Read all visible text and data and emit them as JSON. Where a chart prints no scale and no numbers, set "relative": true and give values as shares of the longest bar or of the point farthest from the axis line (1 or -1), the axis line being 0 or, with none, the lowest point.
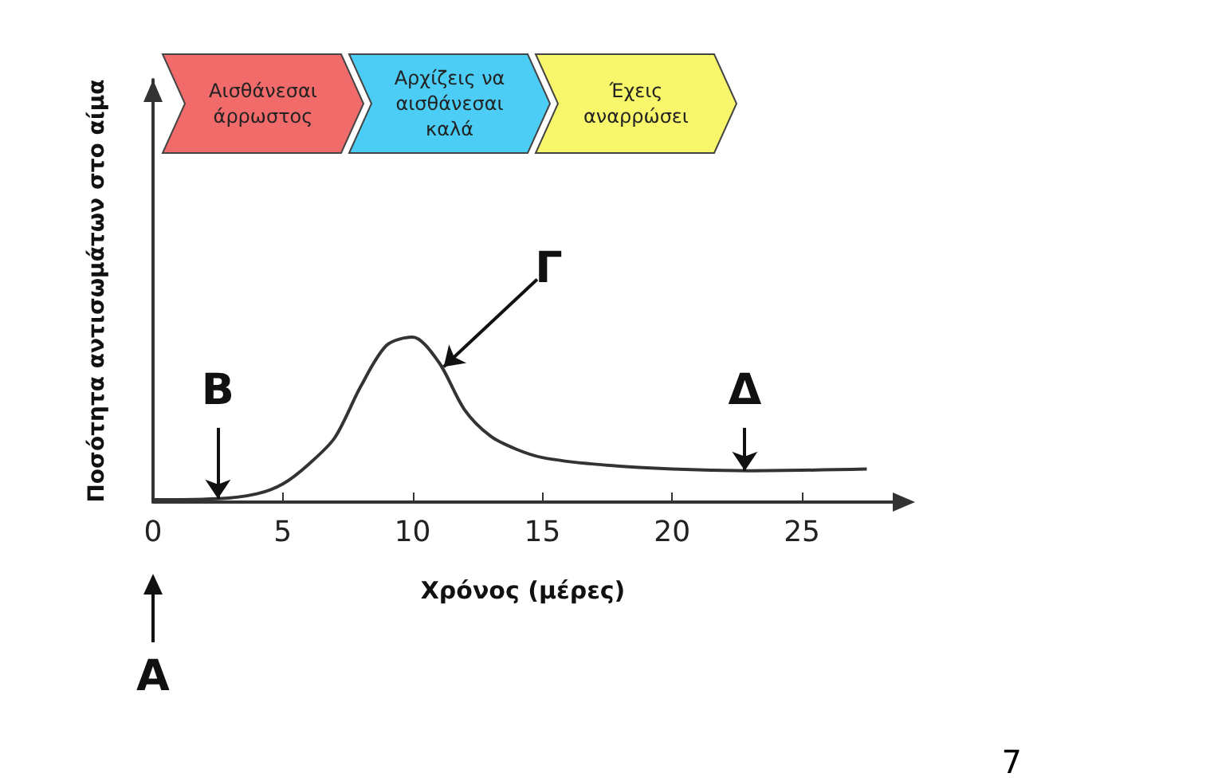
{
  "chart_data": {
    "type": "line",
    "relative": true,
    "xlabel": "Χρόνος (μέρες)",
    "ylabel": "Ποσότητα αντισωμάτων στο αίμα",
    "x": [
      0,
      2.5,
      4,
      5,
      6,
      7,
      8,
      9,
      10,
      11,
      12,
      13,
      14,
      15,
      17,
      20,
      23,
      27.5
    ],
    "values": [
      0.015,
      0.02,
      0.05,
      0.11,
      0.23,
      0.39,
      0.7,
      0.95,
      1,
      0.85,
      0.56,
      0.4,
      0.32,
      0.27,
      0.23,
      0.2,
      0.19,
      0.2
    ],
    "color": "#333333",
    "marker": "none",
    "line_style": "solid",
    "grid": false,
    "xlim": [
      0,
      28.5
    ],
    "xticks": [
      0,
      5,
      10,
      15,
      20,
      25
    ],
    "annotations": [
      "Αισθάνεσαι άρρωστος",
      "Αρχίζεις να αισθάνεσαι καλά",
      "Έχεις αναρρώσει",
      {
        "text": "Β",
        "x": 2.5,
        "y": 0.02
      },
      {
        "text": "Γ",
        "x": 11.2,
        "y": 0.82
      },
      {
        "text": "Δ",
        "x": 22.8,
        "y": 0.19
      },
      "Α",
      "7"
    ]
  }
}
